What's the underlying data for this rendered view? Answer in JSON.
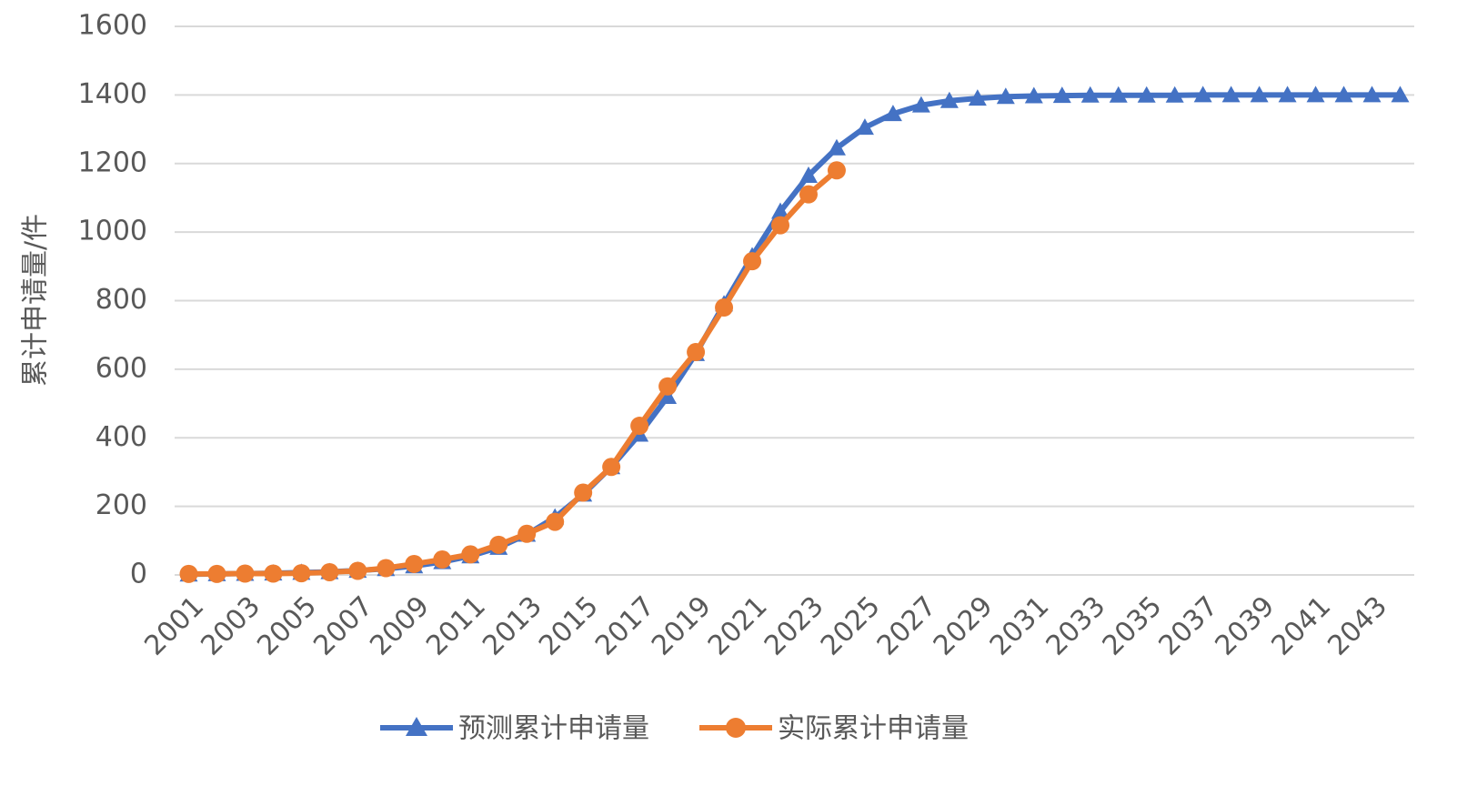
{
  "chart_data": {
    "type": "line",
    "y_label": "累计申请量/件",
    "x": [
      2001,
      2002,
      2003,
      2004,
      2005,
      2006,
      2007,
      2008,
      2009,
      2010,
      2011,
      2012,
      2013,
      2014,
      2015,
      2016,
      2017,
      2018,
      2019,
      2020,
      2021,
      2022,
      2023,
      2024,
      2025,
      2026,
      2027,
      2028,
      2029,
      2030,
      2031,
      2032,
      2033,
      2034,
      2035,
      2036,
      2037,
      2038,
      2039,
      2040,
      2041,
      2042,
      2043,
      2044
    ],
    "xlim": [
      2000.5,
      2044.5
    ],
    "xticks": [
      2001,
      2003,
      2005,
      2007,
      2009,
      2011,
      2013,
      2015,
      2017,
      2019,
      2021,
      2023,
      2025,
      2027,
      2029,
      2031,
      2033,
      2035,
      2037,
      2039,
      2041,
      2043
    ],
    "ylim": [
      0,
      1600
    ],
    "yticks": [
      0,
      200,
      400,
      600,
      800,
      1000,
      1200,
      1400,
      1600
    ],
    "grid": true,
    "legend": "bottom",
    "series": [
      {
        "name": "预测累计申请量",
        "color": "#4472c4",
        "marker": "triangle",
        "values": [
          2,
          3,
          4,
          5,
          7,
          9,
          13,
          18,
          26,
          38,
          55,
          80,
          118,
          168,
          235,
          315,
          410,
          520,
          645,
          790,
          930,
          1060,
          1165,
          1245,
          1305,
          1345,
          1370,
          1383,
          1390,
          1395,
          1397,
          1398,
          1399,
          1399,
          1399,
          1399,
          1400,
          1400,
          1400,
          1400,
          1400,
          1400,
          1400,
          1400
        ]
      },
      {
        "name": "实际累计申请量",
        "color": "#ed7d31",
        "marker": "circle",
        "values": [
          3,
          3,
          4,
          4,
          5,
          8,
          12,
          20,
          32,
          45,
          60,
          88,
          120,
          155,
          240,
          315,
          435,
          550,
          650,
          780,
          915,
          1020,
          1110,
          1180,
          null,
          null,
          null,
          null,
          null,
          null,
          null,
          null,
          null,
          null,
          null,
          null,
          null,
          null,
          null,
          null,
          null,
          null,
          null,
          null
        ]
      }
    ]
  }
}
